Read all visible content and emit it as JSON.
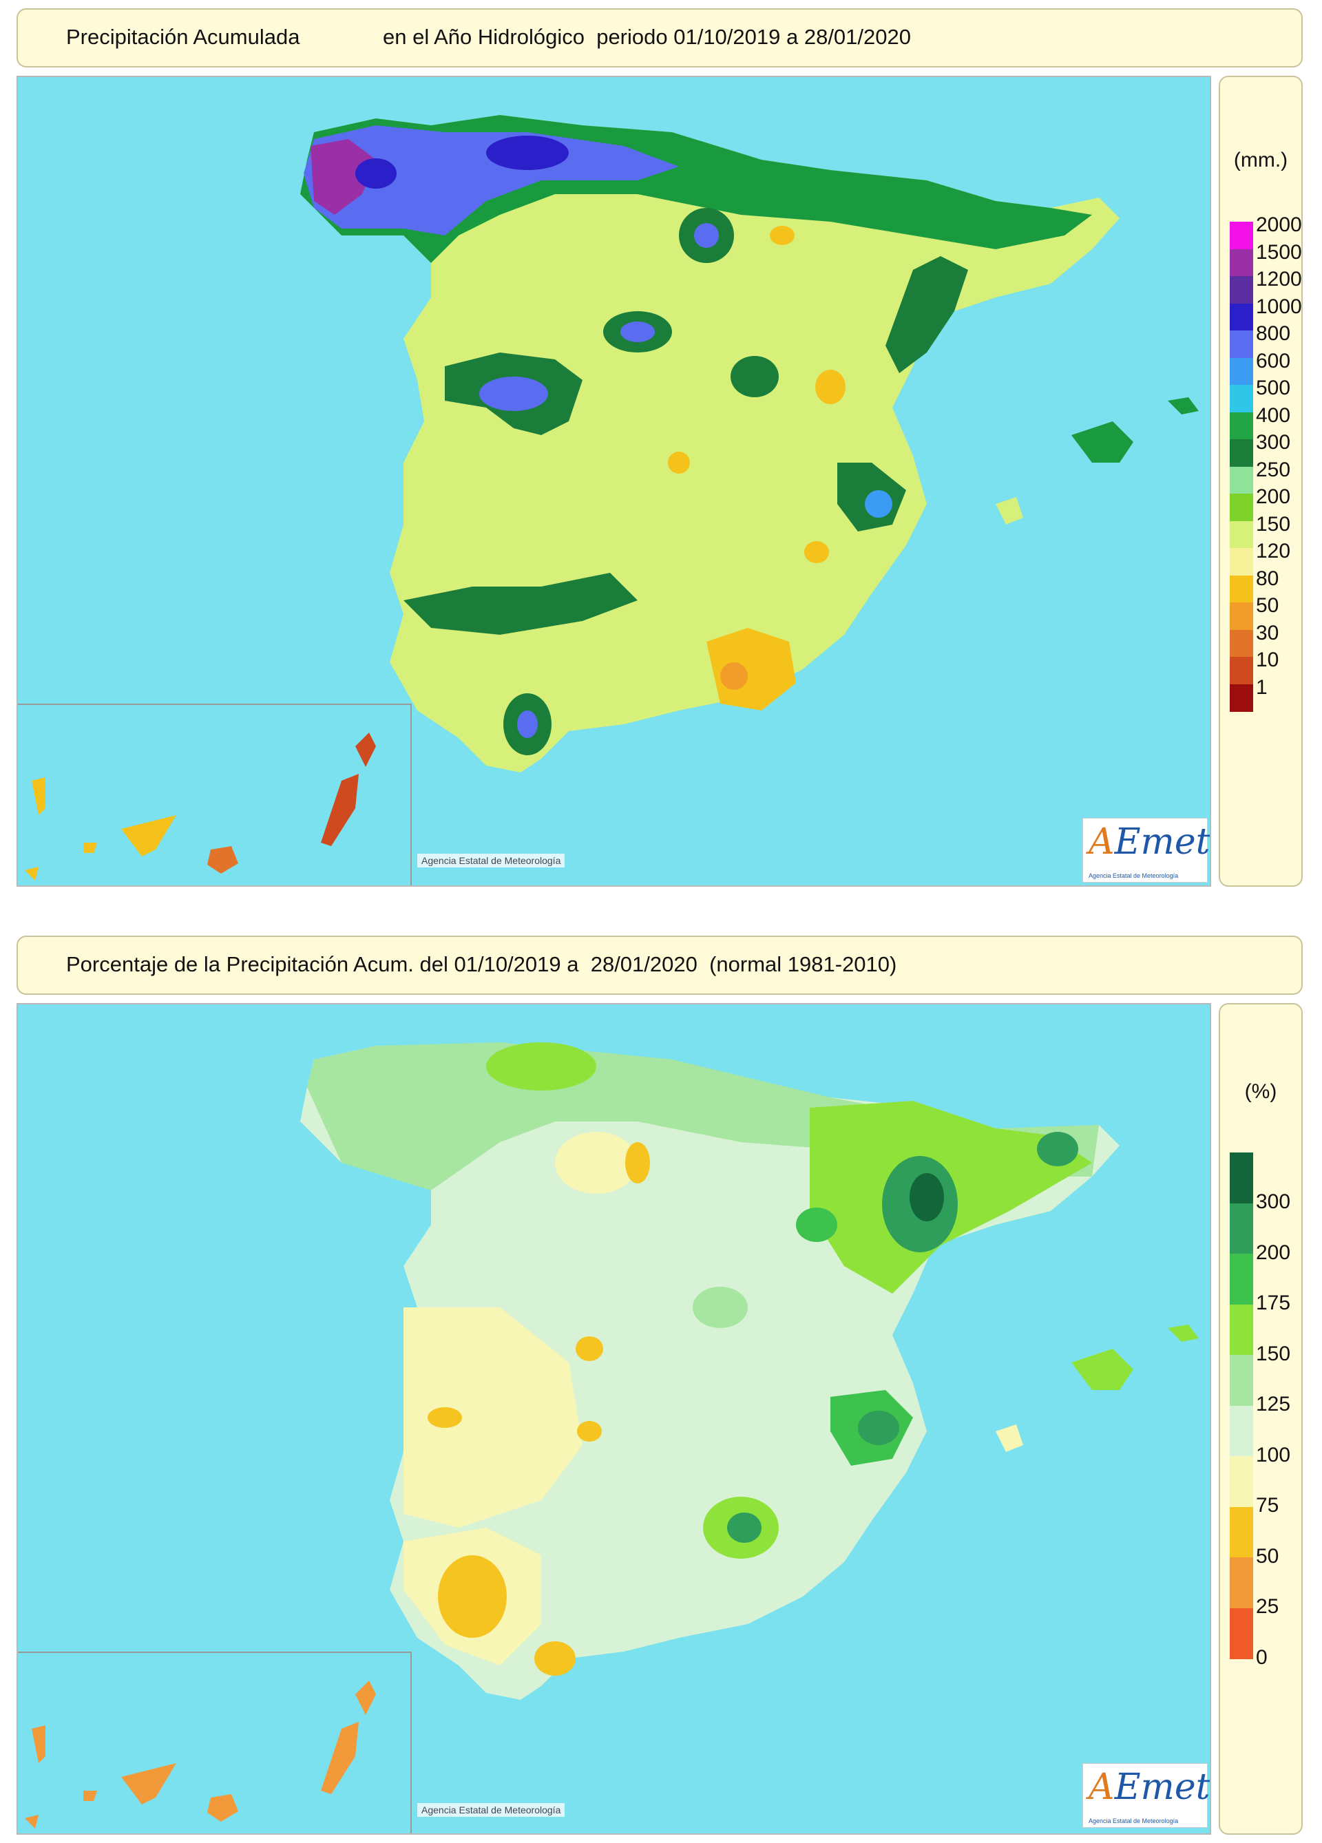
{
  "panel_top": {
    "title_left": "Precipitación Acumulada",
    "title_right": "en el Año Hidrológico  periodo 01/10/2019 a 28/01/2020",
    "unit": "(mm.)",
    "legend": [
      {
        "label": "2000",
        "color": "#f211e8"
      },
      {
        "label": "1500",
        "color": "#9a2fa6"
      },
      {
        "label": "1200",
        "color": "#5a2ea0"
      },
      {
        "label": "1000",
        "color": "#2a1fc8"
      },
      {
        "label": "800",
        "color": "#5a6df0"
      },
      {
        "label": "600",
        "color": "#3c9bf2"
      },
      {
        "label": "500",
        "color": "#2fc6e8"
      },
      {
        "label": "400",
        "color": "#22a544"
      },
      {
        "label": "300",
        "color": "#1a7d3a"
      },
      {
        "label": "250",
        "color": "#8fe29a"
      },
      {
        "label": "200",
        "color": "#7fd22a"
      },
      {
        "label": "150",
        "color": "#d7f07a"
      },
      {
        "label": "120",
        "color": "#f6f29a"
      },
      {
        "label": "80",
        "color": "#f5c21b"
      },
      {
        "label": "50",
        "color": "#f29c2a"
      },
      {
        "label": "30",
        "color": "#e2742a"
      },
      {
        "label": "10",
        "color": "#cf4a1f"
      },
      {
        "label": "1",
        "color": "#9c0d0d"
      }
    ]
  },
  "panel_bottom": {
    "title": "Porcentaje de la Precipitación Acum. del 01/10/2019 a  28/01/2020  (normal 1981-2010)",
    "unit": "(%)",
    "legend": [
      {
        "label": "300",
        "color": "#13653a"
      },
      {
        "label": "200",
        "color": "#2f9e5a"
      },
      {
        "label": "175",
        "color": "#3cc24d"
      },
      {
        "label": "150",
        "color": "#8ee23a"
      },
      {
        "label": "125",
        "color": "#a6e6a0"
      },
      {
        "label": "100",
        "color": "#d8f2d6"
      },
      {
        "label": "75",
        "color": "#f8f6b4"
      },
      {
        "label": "50",
        "color": "#f6c421"
      },
      {
        "label": "25",
        "color": "#f29a3a"
      },
      {
        "label": "0",
        "color": "#f05a2a"
      }
    ]
  },
  "credit": "Agencia Estatal de Meteorología",
  "logo": {
    "text_a": "A",
    "text_rest": "Emet",
    "subtitle": "Agencia Estatal de Meteorología"
  }
}
